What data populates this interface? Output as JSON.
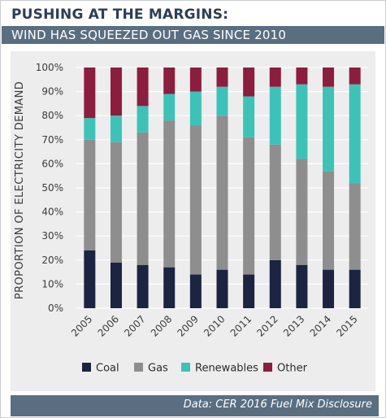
{
  "header": {
    "title": "PUSHING AT THE MARGINS:",
    "subtitle": "WIND HAS SQUEEZED OUT GAS SINCE 2010"
  },
  "footer": {
    "source": "Data: CER 2016 Fuel Mix Disclosure"
  },
  "colors": {
    "Coal": "#1b2440",
    "Gas": "#8e8e8e",
    "Renewables": "#3cc3b8",
    "Other": "#8c1d3e"
  },
  "chart_data": {
    "type": "bar",
    "stacked": true,
    "title": "PUSHING AT THE MARGINS:",
    "subtitle": "WIND HAS SQUEEZED OUT GAS SINCE 2010",
    "xlabel": "",
    "ylabel": "PROPORTION OF ELECTRICITY DEMAND",
    "ylim": [
      0,
      100
    ],
    "yticks": [
      "0%",
      "10%",
      "20%",
      "30%",
      "40%",
      "50%",
      "60%",
      "70%",
      "80%",
      "90%",
      "100%"
    ],
    "grid": true,
    "legend_position": "bottom",
    "categories": [
      "2005",
      "2006",
      "2007",
      "2008",
      "2009",
      "2010",
      "2011",
      "2012",
      "2013",
      "2014",
      "2015"
    ],
    "series": [
      {
        "name": "Coal",
        "values": [
          24,
          19,
          18,
          17,
          14,
          16,
          14,
          20,
          18,
          16,
          16
        ]
      },
      {
        "name": "Gas",
        "values": [
          46,
          50,
          55,
          61,
          62,
          64,
          57,
          48,
          44,
          41,
          36
        ]
      },
      {
        "name": "Renewables",
        "values": [
          9,
          11,
          11,
          11,
          14,
          12,
          17,
          24,
          31,
          35,
          41
        ]
      },
      {
        "name": "Other",
        "values": [
          21,
          20,
          16,
          11,
          10,
          8,
          12,
          8,
          7,
          8,
          7
        ]
      }
    ]
  }
}
